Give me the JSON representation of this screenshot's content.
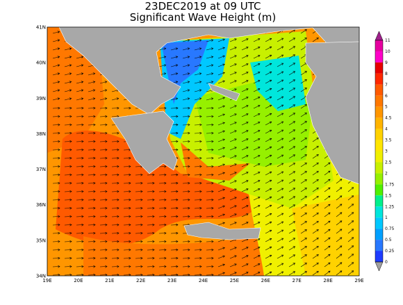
{
  "header": {
    "title": "23DEC2019 at 09 UTC",
    "subtitle": "Significant Wave Height (m)"
  },
  "map": {
    "lat_labels": [
      "41N",
      "40N",
      "39N",
      "38N",
      "37N",
      "36N",
      "35N",
      "34N"
    ],
    "lon_labels": [
      "19E",
      "20E",
      "21E",
      "22E",
      "23E",
      "24E",
      "25E",
      "26E",
      "27E",
      "28E",
      "29E"
    ]
  },
  "colorbar": {
    "labels": [
      11,
      10,
      9,
      8,
      7,
      6,
      5,
      4.5,
      4,
      3.5,
      3,
      2.5,
      2,
      1.75,
      1.5,
      1.25,
      1,
      0.75,
      0.5,
      0.25,
      0
    ],
    "colors": [
      "#a0208c",
      "#e600a0",
      "#ff00c8",
      "#e60000",
      "#ff2800",
      "#ff5a00",
      "#ff7800",
      "#ff9600",
      "#ffb400",
      "#ffd200",
      "#ffe600",
      "#f0f000",
      "#c8f000",
      "#96f000",
      "#50f000",
      "#00f08c",
      "#00e6dc",
      "#00c8ff",
      "#00a0ff",
      "#2878ff",
      "#1e3cff",
      "#a0a0a0"
    ]
  }
}
